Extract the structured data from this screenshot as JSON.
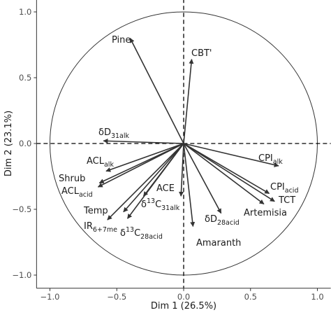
{
  "chart_data": {
    "type": "scatter",
    "subtype": "pca-correlation-circle",
    "xlabel": "Dim 1 (26.5%)",
    "ylabel": "Dim 2 (23.1%)",
    "xlim": [
      -1.1,
      1.1
    ],
    "ylim": [
      -1.1,
      1.1
    ],
    "x_ticks": [
      -1.0,
      -0.5,
      0.0,
      0.5,
      1.0
    ],
    "y_ticks": [
      -1.0,
      -0.5,
      0.0,
      0.5,
      1.0
    ],
    "x_tick_labels": [
      "−1.0",
      "−0.5",
      "0.0",
      "0.5",
      "1.0"
    ],
    "y_tick_labels": [
      "−1.0",
      "−0.5",
      "0.0",
      "0.5",
      "1.0"
    ],
    "circle_radius": 1.0,
    "reference_lines": "dashed at x=0 and y=0",
    "grid": false,
    "variables": [
      {
        "name": "Pine",
        "label": "Pine",
        "x": -0.4,
        "y": 0.8
      },
      {
        "name": "CBT'",
        "label": "CBT'",
        "x": 0.06,
        "y": 0.64
      },
      {
        "name": "δD31alk",
        "label": "δD",
        "sub": "31alk",
        "x": -0.6,
        "y": 0.02
      },
      {
        "name": "CPIalk",
        "label": "CPI",
        "sub": "alk",
        "x": 0.71,
        "y": -0.17
      },
      {
        "name": "CPIacid",
        "label": "CPI",
        "sub": "acid",
        "x": 0.64,
        "y": -0.38
      },
      {
        "name": "TCT",
        "label": "TCT",
        "x": 0.68,
        "y": -0.44
      },
      {
        "name": "Artemisia",
        "label": "Artemisia",
        "x": 0.6,
        "y": -0.46
      },
      {
        "name": "δD28acid",
        "label": "δD",
        "sub": "28acid",
        "x": 0.28,
        "y": -0.53
      },
      {
        "name": "Amaranth",
        "label": "Amaranth",
        "x": 0.07,
        "y": -0.63
      },
      {
        "name": "ACE",
        "label": "ACE",
        "x": -0.02,
        "y": -0.4
      },
      {
        "name": "δ13C31alk",
        "label": "δ",
        "sup": "13",
        "label2": "C",
        "sub": "31alk",
        "x": -0.3,
        "y": -0.4
      },
      {
        "name": "δ13C28acid",
        "label": "δ",
        "sup": "13",
        "label2": "C",
        "sub": "28acid",
        "x": -0.42,
        "y": -0.57
      },
      {
        "name": "Temp",
        "label": "Temp",
        "x": -0.45,
        "y": -0.52
      },
      {
        "name": "IR6+7me",
        "label": "IR",
        "sub": "6+7me",
        "x": -0.57,
        "y": -0.58
      },
      {
        "name": "ACLalk",
        "label": "ACL",
        "sub": "alk",
        "x": -0.58,
        "y": -0.21
      },
      {
        "name": "Shrub",
        "label": "Shrub",
        "x": -0.63,
        "y": -0.3
      },
      {
        "name": "ACLacid",
        "label": "ACL",
        "sub": "acid",
        "x": -0.64,
        "y": -0.33
      }
    ]
  },
  "colors": {
    "arrow": "#333333",
    "axis": "#000000",
    "circle": "#333333",
    "background": "#ffffff"
  }
}
